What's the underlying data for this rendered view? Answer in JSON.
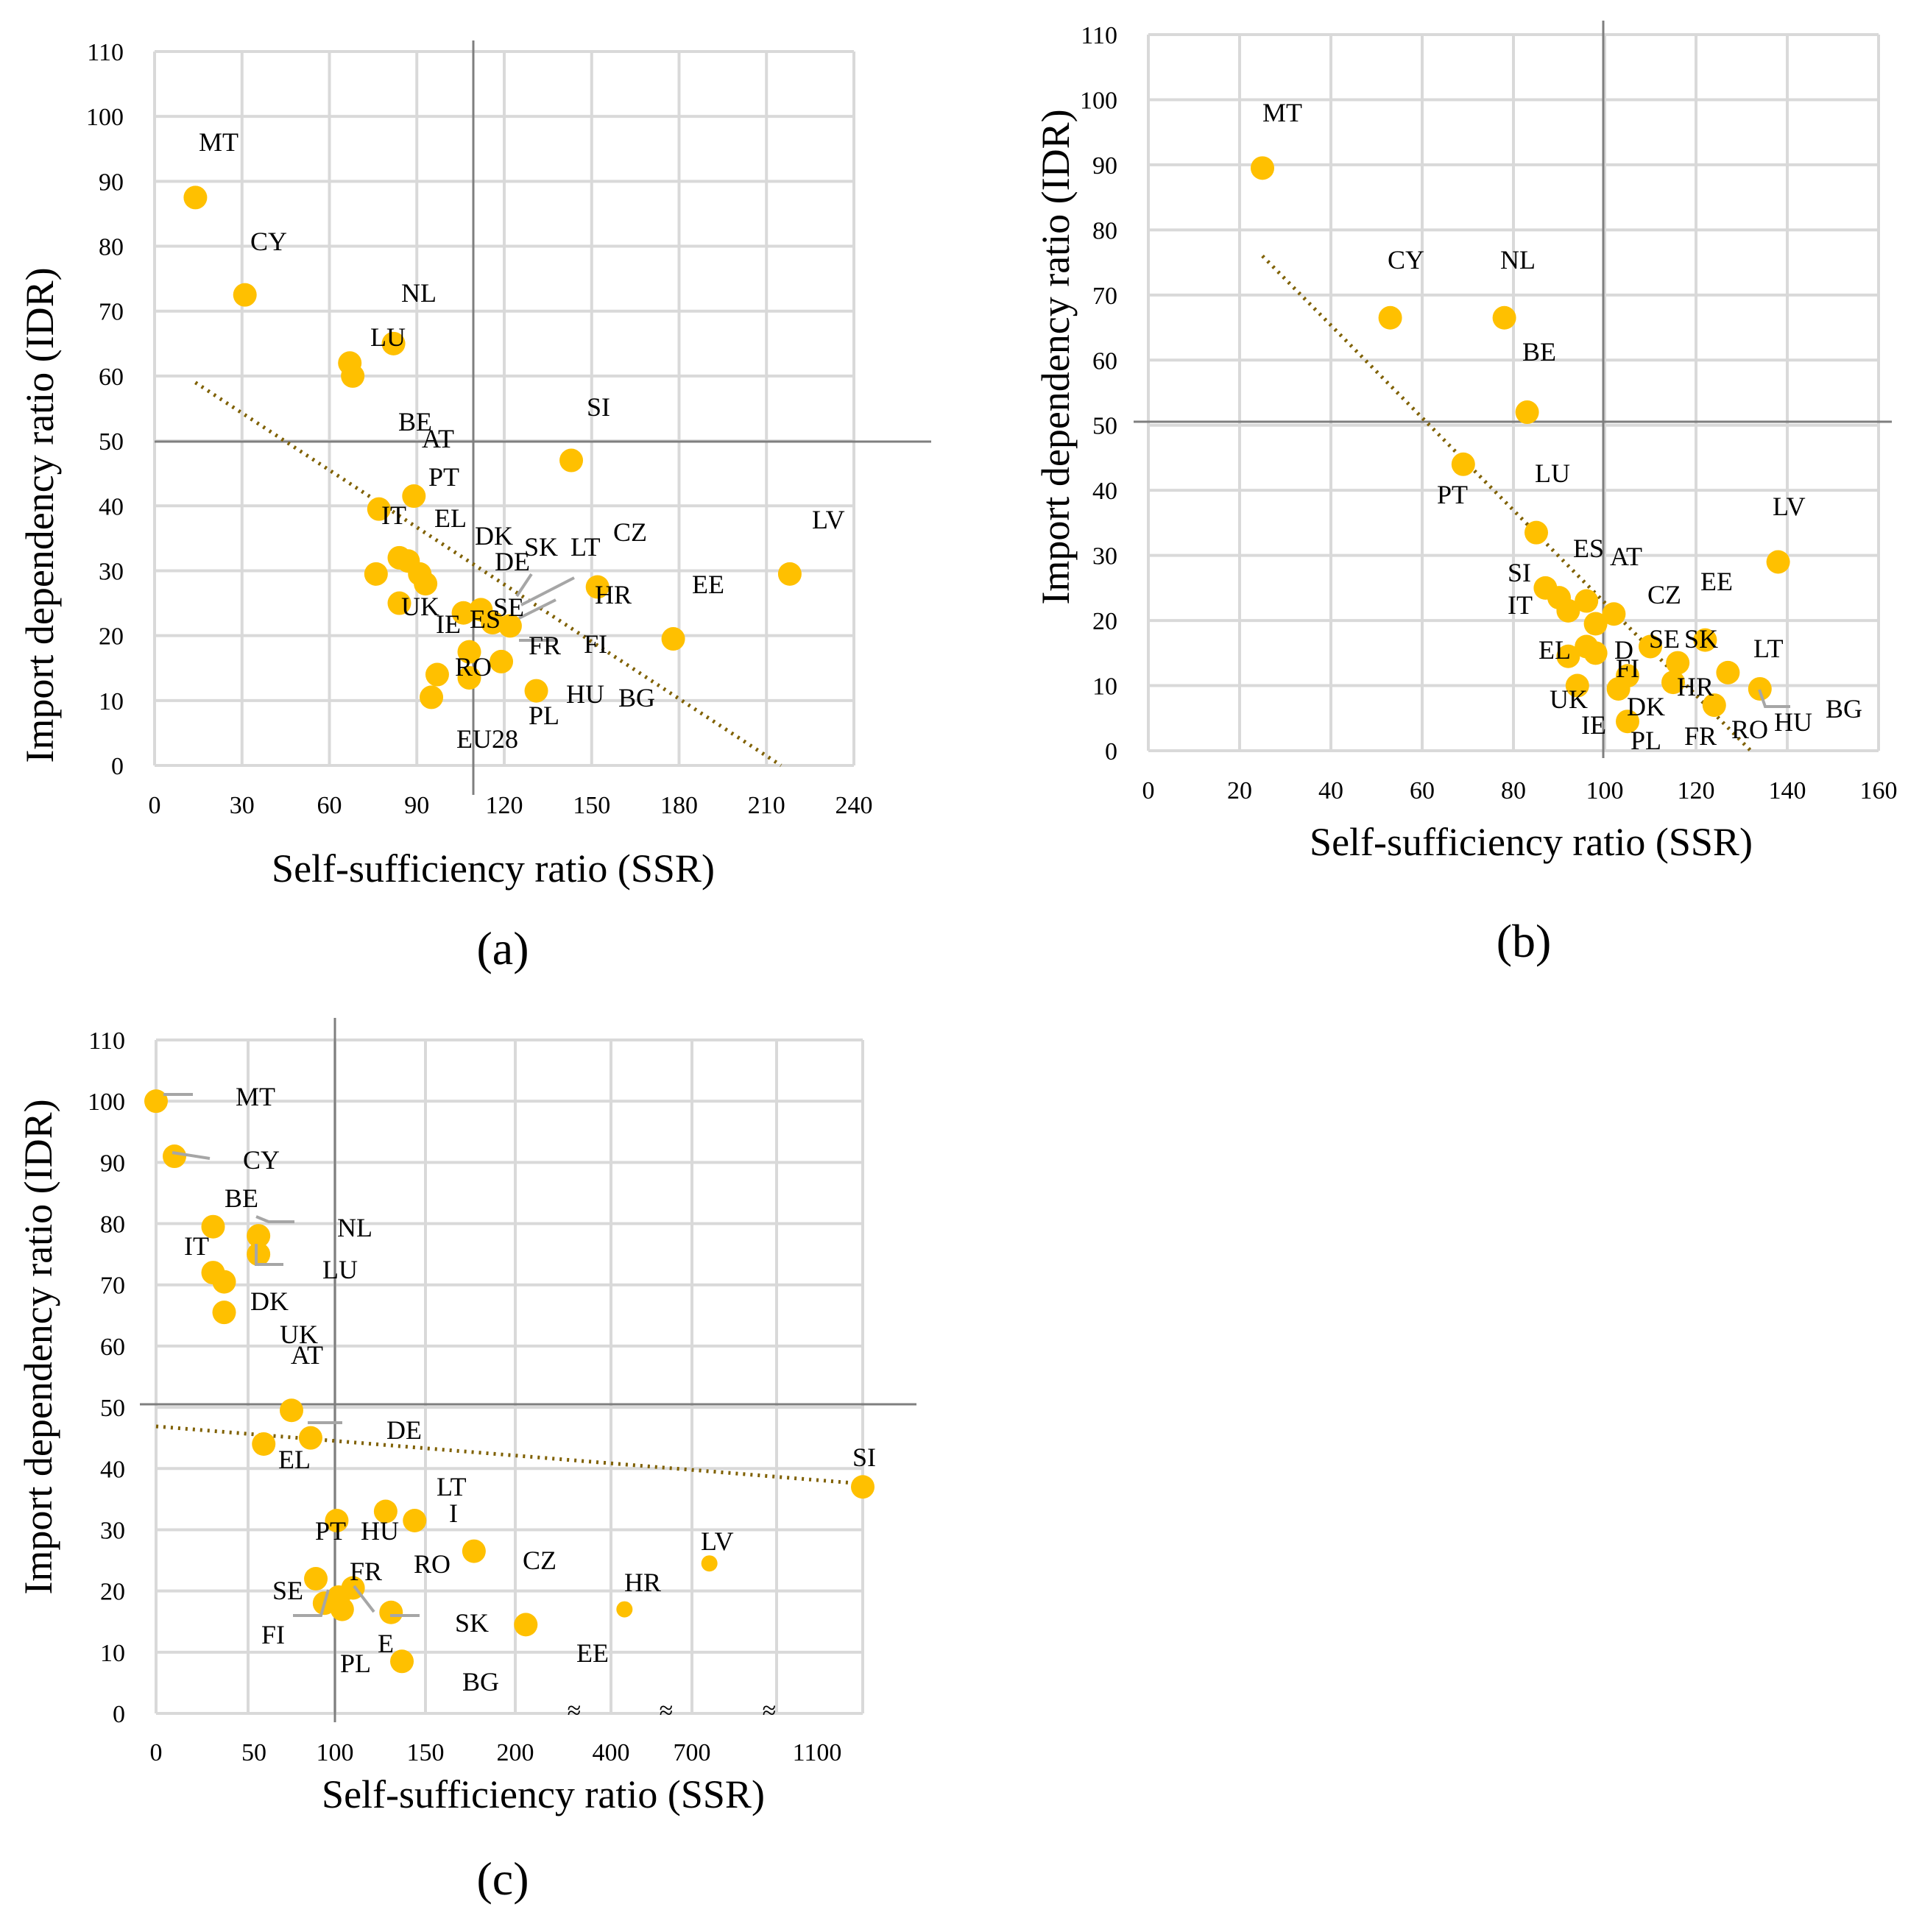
{
  "colors": {
    "point": "#ffc000",
    "trend": "#7f6000",
    "grid": "#d9d9d9",
    "reference": "#7f7f7f"
  },
  "chart_data": [
    {
      "type": "scatter",
      "panel_label": "(a)",
      "xlabel": "Self-sufficiency ratio (SSR)",
      "ylabel": "Import dependency ratio (IDR)",
      "xlim": [
        0,
        240
      ],
      "ylim": [
        0,
        110
      ],
      "xticks": [
        0,
        30,
        60,
        90,
        120,
        150,
        180,
        210,
        240
      ],
      "yticks": [
        0,
        10,
        20,
        30,
        40,
        50,
        60,
        70,
        80,
        90,
        100,
        110
      ],
      "reference_lines": {
        "x": 105,
        "y": 50
      },
      "trendline": [
        [
          14,
          59
        ],
        [
          215,
          0
        ]
      ],
      "points": [
        {
          "label": "MT",
          "x": 14,
          "y": 87.5
        },
        {
          "label": "CY",
          "x": 31,
          "y": 72.5
        },
        {
          "label": "LU",
          "x": 67,
          "y": 62
        },
        {
          "label": "",
          "x": 68,
          "y": 60
        },
        {
          "label": "NL",
          "x": 82,
          "y": 65
        },
        {
          "label": "SI",
          "x": 143,
          "y": 47
        },
        {
          "label": "LV",
          "x": 218,
          "y": 29.5
        },
        {
          "label": "PT",
          "x": 89,
          "y": 41.5
        },
        {
          "label": "IT",
          "x": 77,
          "y": 39.5
        },
        {
          "label": "",
          "x": 76,
          "y": 29.5
        },
        {
          "label": "",
          "x": 84,
          "y": 32
        },
        {
          "label": "",
          "x": 87,
          "y": 31.5
        },
        {
          "label": "",
          "x": 91,
          "y": 29.5
        },
        {
          "label": "",
          "x": 93,
          "y": 28
        },
        {
          "label": "UK",
          "x": 84,
          "y": 25
        },
        {
          "label": "ES",
          "x": 106,
          "y": 23.5
        },
        {
          "label": "SE",
          "x": 112,
          "y": 24
        },
        {
          "label": "",
          "x": 116,
          "y": 22
        },
        {
          "label": "FI",
          "x": 122,
          "y": 21.5
        },
        {
          "label": "CZ",
          "x": 152,
          "y": 27.5
        },
        {
          "label": "EE",
          "x": 178,
          "y": 19.5
        },
        {
          "label": "",
          "x": 108,
          "y": 17.5
        },
        {
          "label": "FR",
          "x": 119,
          "y": 16
        },
        {
          "label": "RO",
          "x": 108,
          "y": 13.5
        },
        {
          "label": "",
          "x": 97,
          "y": 14
        },
        {
          "label": "EU28",
          "x": 95,
          "y": 10.5
        },
        {
          "label": "HU",
          "x": 131,
          "y": 11.5
        }
      ],
      "extra_labels": [
        "BE",
        "AT",
        "EL",
        "DK",
        "DE",
        "SK",
        "LT",
        "HR",
        "IE",
        "PL",
        "BG"
      ]
    },
    {
      "type": "scatter",
      "panel_label": "(b)",
      "xlabel": "Self-sufficiency ratio (SSR)",
      "ylabel": "Import dependency ratio (IDR)",
      "xlim": [
        0,
        160
      ],
      "ylim": [
        0,
        110
      ],
      "xticks": [
        0,
        20,
        40,
        60,
        80,
        100,
        120,
        140,
        160
      ],
      "yticks": [
        0,
        10,
        20,
        30,
        40,
        50,
        60,
        70,
        80,
        90,
        100,
        110
      ],
      "reference_lines": {
        "x": 100,
        "y": 50
      },
      "trendline": [
        [
          25,
          76
        ],
        [
          132,
          0
        ]
      ],
      "points": [
        {
          "label": "MT",
          "x": 25,
          "y": 89.5
        },
        {
          "label": "CY",
          "x": 53,
          "y": 66.5
        },
        {
          "label": "NL",
          "x": 78,
          "y": 66.5
        },
        {
          "label": "BE",
          "x": 83,
          "y": 52
        },
        {
          "label": "PT",
          "x": 69,
          "y": 44
        },
        {
          "label": "LU",
          "x": 85,
          "y": 33.5
        },
        {
          "label": "LV",
          "x": 138,
          "y": 29
        },
        {
          "label": "SI",
          "x": 87,
          "y": 25
        },
        {
          "label": "",
          "x": 90,
          "y": 23.5
        },
        {
          "label": "IT",
          "x": 92,
          "y": 21.5
        },
        {
          "label": "AT",
          "x": 96,
          "y": 23
        },
        {
          "label": "",
          "x": 98,
          "y": 19.5
        },
        {
          "label": "CZ",
          "x": 102,
          "y": 21
        },
        {
          "label": "EE",
          "x": 122,
          "y": 17
        },
        {
          "label": "EL",
          "x": 92,
          "y": 14.5
        },
        {
          "label": "",
          "x": 96,
          "y": 16
        },
        {
          "label": "",
          "x": 98,
          "y": 15
        },
        {
          "label": "UK",
          "x": 94,
          "y": 10
        },
        {
          "label": "DK",
          "x": 103,
          "y": 9.5
        },
        {
          "label": "FI",
          "x": 105,
          "y": 11.5
        },
        {
          "label": "SE",
          "x": 110,
          "y": 16
        },
        {
          "label": "SK",
          "x": 116,
          "y": 13.5
        },
        {
          "label": "HR",
          "x": 115,
          "y": 10.5
        },
        {
          "label": "LT",
          "x": 127,
          "y": 12
        },
        {
          "label": "RO",
          "x": 124,
          "y": 7
        },
        {
          "label": "HU",
          "x": 134,
          "y": 9.5
        },
        {
          "label": "PL",
          "x": 105,
          "y": 4.5
        }
      ],
      "extra_labels": [
        "ES",
        "D",
        "IE",
        "FR",
        "BG"
      ]
    },
    {
      "type": "scatter",
      "panel_label": "(c)",
      "xlabel": "Self-sufficiency ratio (SSR)",
      "ylabel": "Import dependency ratio (IDR)",
      "ylim": [
        0,
        110
      ],
      "xtick_labels": [
        "0",
        "50",
        "100",
        "150",
        "200",
        "400",
        "700",
        "1100"
      ],
      "yticks": [
        0,
        10,
        20,
        30,
        40,
        50,
        60,
        70,
        80,
        90,
        100,
        110
      ],
      "axis_break_marks": [
        "≈",
        "≈",
        "≈"
      ],
      "reference_lines": {
        "x": 100,
        "y": 50
      },
      "points": [
        {
          "label": "MT",
          "x": 0,
          "y": 100
        },
        {
          "label": "CY",
          "x": 10,
          "y": 91
        },
        {
          "label": "BE",
          "x": 31,
          "y": 79.5
        },
        {
          "label": "NL",
          "x": 56,
          "y": 78
        },
        {
          "label": "LU",
          "x": 56,
          "y": 75
        },
        {
          "label": "IT",
          "x": 31,
          "y": 72
        },
        {
          "label": "",
          "x": 37,
          "y": 70.5
        },
        {
          "label": "DK",
          "x": 37,
          "y": 65.5
        },
        {
          "label": "AT",
          "x": 75,
          "y": 49.5
        },
        {
          "label": "DE",
          "x": 86,
          "y": 45
        },
        {
          "label": "EL",
          "x": 59,
          "y": 44
        },
        {
          "label": "SI",
          "x": 1190,
          "y": 37
        },
        {
          "label": "PT",
          "x": 101,
          "y": 31.5
        },
        {
          "label": "HU",
          "x": 128,
          "y": 33
        },
        {
          "label": "LT",
          "x": 144,
          "y": 31.5
        },
        {
          "label": "CZ",
          "x": 177,
          "y": 26.5
        },
        {
          "label": "LV",
          "x": 750,
          "y": 24.5
        },
        {
          "label": "HR",
          "x": 450,
          "y": 17
        },
        {
          "label": "SE",
          "x": 89,
          "y": 22
        },
        {
          "label": "FR",
          "x": 110,
          "y": 20.5
        },
        {
          "label": "",
          "x": 102,
          "y": 19
        },
        {
          "label": "FI",
          "x": 94,
          "y": 18
        },
        {
          "label": "E",
          "x": 104,
          "y": 17
        },
        {
          "label": "SK",
          "x": 131,
          "y": 16.5
        },
        {
          "label": "EE",
          "x": 222,
          "y": 14.5
        },
        {
          "label": "BG",
          "x": 137,
          "y": 8.5
        }
      ],
      "extra_labels": [
        "UK",
        "I",
        "RO",
        "PL"
      ]
    }
  ]
}
